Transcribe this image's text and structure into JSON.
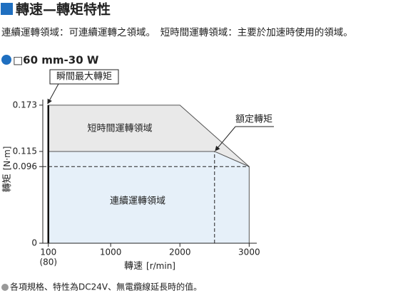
{
  "header": {
    "title": "轉速—轉矩特性",
    "description": "連續運轉領域：可連續運轉之領域。　短時間運轉領域：主要於加速時使用的領域。"
  },
  "chart_data": {
    "type": "area",
    "title": "□60 mm-30 W",
    "x_label": "轉速",
    "x_unit": "[r/min]",
    "y_label": "轉矩",
    "y_unit": "[N·m]",
    "xlim": [
      20,
      3110
    ],
    "ylim": [
      0,
      0.18
    ],
    "xticks": [
      100,
      1000,
      2000,
      3000
    ],
    "x_tick_note": "(80)",
    "yticks": [
      0,
      0.096,
      0.115,
      0.173
    ],
    "series": [
      {
        "name": "短時間運轉領域",
        "color": "#e9e9e9",
        "x": [
          100,
          100,
          2000,
          3000,
          2500
        ],
        "values": [
          0.115,
          0.173,
          0.173,
          0.096,
          0.115
        ]
      },
      {
        "name": "連續運轉領域",
        "color": "#e6f0f9",
        "x": [
          100,
          100,
          2500,
          3000,
          3000
        ],
        "values": [
          0,
          0.115,
          0.115,
          0.096,
          0
        ]
      }
    ],
    "guides": {
      "x": 2500,
      "y": 0.096
    },
    "annotations": [
      {
        "text": "瞬間最大轉矩",
        "x": 100,
        "y": 0.173
      },
      {
        "text": "額定轉矩",
        "x": 2500,
        "y": 0.115
      }
    ]
  },
  "footer": {
    "note": "各項規格、特性為DC24V、無電纜線延長時的值。"
  }
}
